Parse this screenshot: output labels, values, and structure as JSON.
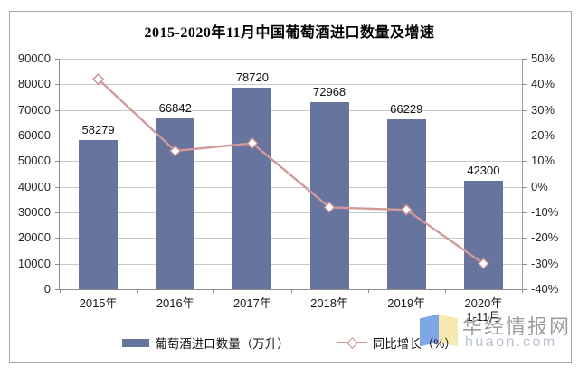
{
  "chart_data": {
    "type": "bar",
    "title": "2015-2020年11月中国葡萄酒进口数量及增速",
    "categories": [
      "2015年",
      "2016年",
      "2017年",
      "2018年",
      "2019年",
      "2020年"
    ],
    "category_sublabels": [
      "",
      "",
      "",
      "",
      "",
      "1-11月"
    ],
    "series": [
      {
        "name": "葡萄酒进口数量（万升）",
        "type": "bar",
        "axis": "left",
        "color": "#67749e",
        "values": [
          58279,
          66842,
          78720,
          72968,
          66229,
          42300
        ],
        "data_labels": [
          "58279",
          "66842",
          "78720",
          "72968",
          "66229",
          "42300"
        ]
      },
      {
        "name": "同比增长（%）",
        "type": "line",
        "axis": "right",
        "color": "#d29a98",
        "marker": "open-diamond",
        "values": [
          42,
          14,
          17,
          -8,
          -9,
          -30
        ]
      }
    ],
    "left_axis": {
      "min": 0,
      "max": 90000,
      "step": 10000,
      "tick_labels": [
        "0",
        "10000",
        "20000",
        "30000",
        "40000",
        "50000",
        "60000",
        "70000",
        "80000",
        "90000"
      ]
    },
    "right_axis": {
      "min": -40,
      "max": 50,
      "step": 10,
      "tick_labels": [
        "-40%",
        "-30%",
        "-20%",
        "-10%",
        "0%",
        "10%",
        "20%",
        "30%",
        "40%",
        "50%"
      ]
    },
    "grid": true,
    "legend_position": "bottom"
  },
  "legend": {
    "items": [
      {
        "label": "葡萄酒进口数量（万升）",
        "marker": "bar-swatch",
        "color": "#67749e"
      },
      {
        "label": "同比增长（%）",
        "marker": "line-diamond",
        "color": "#d29a98"
      }
    ]
  },
  "watermark": {
    "site_name": "华经情报网",
    "site_url": "huaon.com",
    "logo_colors": {
      "blue": "#7aa3e4",
      "yellow": "#f4e9ae"
    }
  }
}
